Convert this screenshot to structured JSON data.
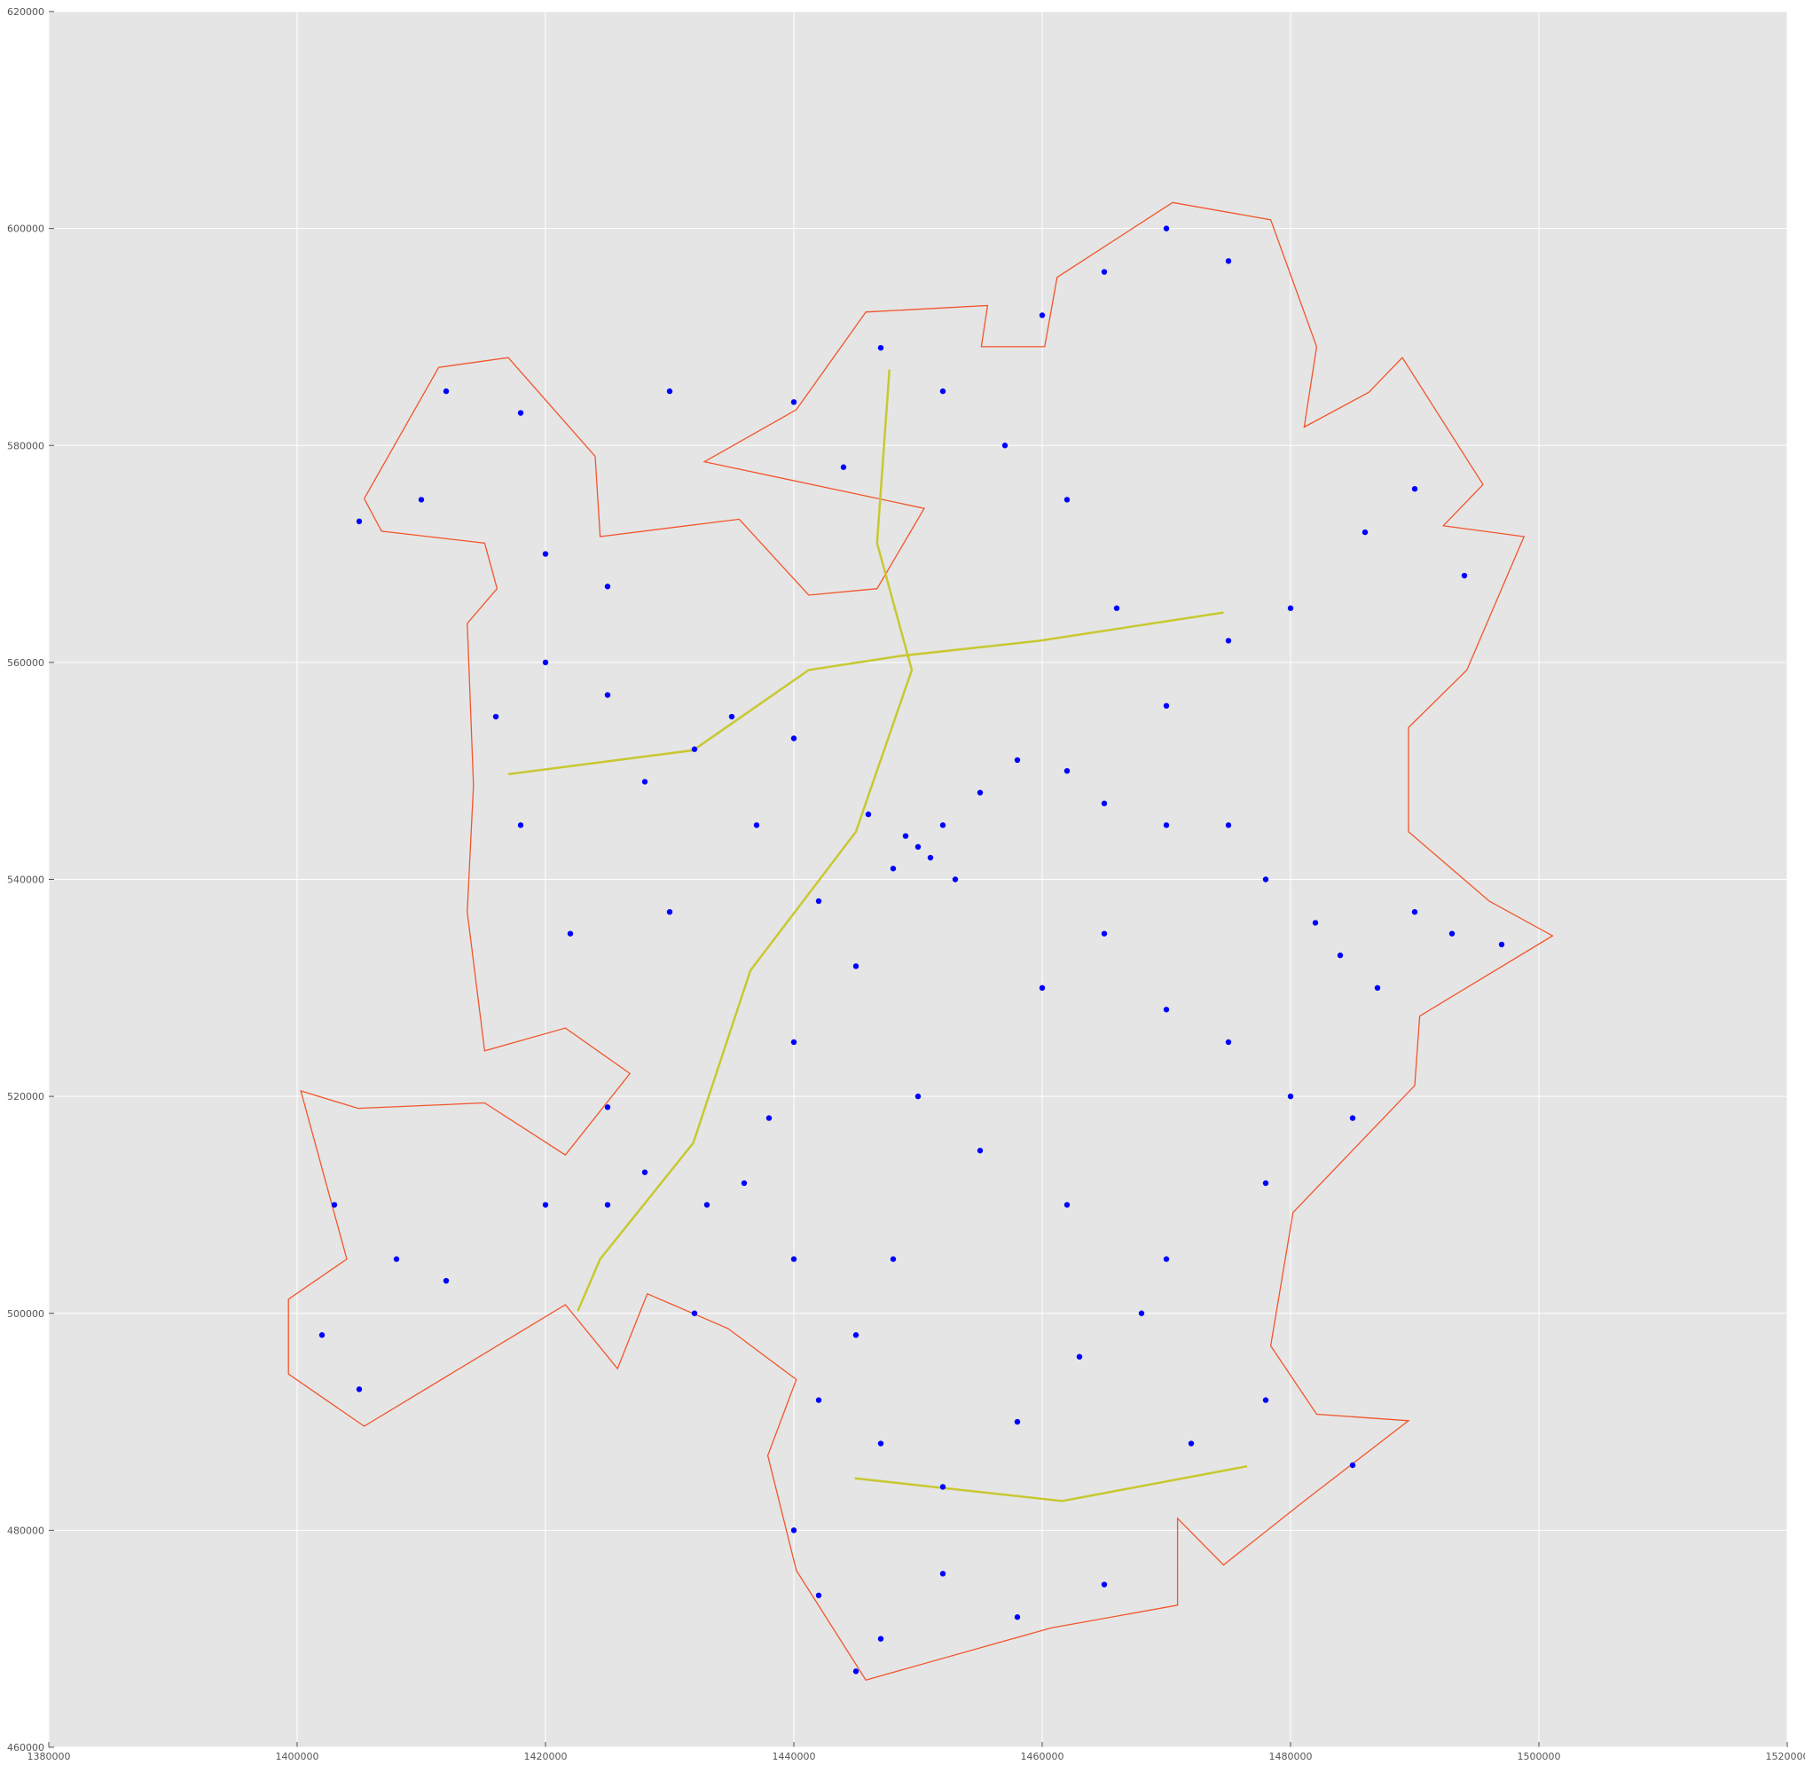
{
  "chart_data": {
    "type": "scatter",
    "xlim": [
      1380000,
      1520000
    ],
    "xticks": [
      1380000,
      1400000,
      1420000,
      1440000,
      1460000,
      1480000,
      1500000,
      1520000
    ],
    "ylim": [
      460000,
      620000
    ],
    "yticks": [
      460000,
      480000,
      500000,
      520000,
      540000,
      560000,
      580000,
      600000,
      620000
    ],
    "grid": true,
    "boundary": {
      "color": "#f2552c",
      "x": [
        1405400,
        1411400,
        1417000,
        1424000,
        1424400,
        1435600,
        1441200,
        1446700,
        1450500,
        1432800,
        1440200,
        1445800,
        1455600,
        1455100,
        1460200,
        1461200,
        1470500,
        1478400,
        1482100,
        1481100,
        1486300,
        1489000,
        1495500,
        1492300,
        1498800,
        1494200,
        1489500,
        1489500,
        1496000,
        1501100,
        1490400,
        1490000,
        1480200,
        1478400,
        1482100,
        1489500,
        1481100,
        1474600,
        1470900,
        1470900,
        1460700,
        1445800,
        1440200,
        1437900,
        1440200,
        1434700,
        1428200,
        1425800,
        1421600,
        1405400,
        1399300,
        1399300,
        1404000,
        1400300,
        1404900,
        1415100,
        1421600,
        1426800,
        1421600,
        1415100,
        1413700,
        1414200,
        1413700,
        1416100,
        1415100,
        1406800,
        1405400
      ],
      "values": [
        575100,
        587200,
        588100,
        579000,
        571600,
        573200,
        566200,
        566800,
        574200,
        578500,
        583300,
        592300,
        592900,
        589100,
        589100,
        595500,
        602400,
        600800,
        589100,
        581700,
        584900,
        588100,
        576400,
        572600,
        571600,
        559300,
        554000,
        544400,
        538000,
        534800,
        527400,
        521000,
        509300,
        497000,
        490700,
        490100,
        482700,
        476800,
        481100,
        473100,
        471000,
        466200,
        476300,
        486900,
        493900,
        498600,
        501800,
        494900,
        500800,
        489600,
        494400,
        501300,
        505000,
        520500,
        518900,
        519400,
        514600,
        522100,
        526300,
        524200,
        537000,
        548700,
        563600,
        566800,
        571000,
        572100,
        575100
      ]
    },
    "roads": [
      {
        "color": "#c8c832",
        "x": [
          1417000,
          1431900,
          1441200,
          1448600,
          1459800,
          1474600
        ],
        "values": [
          549700,
          551900,
          559300,
          560600,
          562000,
          564600
        ]
      },
      {
        "color": "#c8c832",
        "x": [
          1447700,
          1446700,
          1449500,
          1445000,
          1436500,
          1431900,
          1424400,
          1422600
        ],
        "values": [
          587000,
          571000,
          559300,
          544400,
          531600,
          515700,
          505000,
          500200
        ]
      },
      {
        "color": "#c8c832",
        "x": [
          1444900,
          1461600,
          1476500
        ],
        "values": [
          484800,
          482700,
          485900
        ]
      }
    ],
    "series": [
      {
        "color": "#0000ff",
        "x": [
          1450000,
          1451000,
          1449000,
          1452000,
          1448000,
          1453000,
          1446000,
          1455000,
          1458000,
          1462000,
          1465000,
          1470000,
          1475000,
          1478000,
          1482000,
          1484000,
          1487000,
          1490000,
          1493000,
          1497000,
          1440000,
          1435000,
          1432000,
          1428000,
          1425000,
          1420000,
          1416000,
          1418000,
          1422000,
          1430000,
          1437000,
          1442000,
          1445000,
          1440000,
          1438000,
          1436000,
          1440000,
          1433000,
          1428000,
          1425000,
          1460000,
          1465000,
          1470000,
          1475000,
          1480000,
          1485000,
          1478000,
          1470000,
          1462000,
          1455000,
          1450000,
          1448000,
          1445000,
          1442000,
          1447000,
          1452000,
          1458000,
          1463000,
          1468000,
          1472000,
          1478000,
          1485000,
          1440000,
          1442000,
          1447000,
          1452000,
          1458000,
          1465000,
          1445000,
          1470000,
          1475000,
          1480000,
          1486000,
          1490000,
          1494000,
          1466000,
          1462000,
          1457000,
          1452000,
          1444000,
          1440000,
          1447000,
          1460000,
          1465000,
          1470000,
          1475000,
          1430000,
          1425000,
          1420000,
          1410000,
          1405000,
          1412000,
          1418000,
          1403000,
          1408000,
          1402000,
          1405000,
          1412000,
          1420000,
          1425000,
          1432000
        ],
        "values": [
          543000,
          542000,
          544000,
          545000,
          541000,
          540000,
          546000,
          548000,
          551000,
          550000,
          547000,
          545000,
          545000,
          540000,
          536000,
          533000,
          530000,
          537000,
          535000,
          534000,
          553000,
          555000,
          552000,
          549000,
          557000,
          560000,
          555000,
          545000,
          535000,
          537000,
          545000,
          538000,
          532000,
          525000,
          518000,
          512000,
          505000,
          510000,
          513000,
          510000,
          530000,
          535000,
          528000,
          525000,
          520000,
          518000,
          512000,
          505000,
          510000,
          515000,
          520000,
          505000,
          498000,
          492000,
          488000,
          484000,
          490000,
          496000,
          500000,
          488000,
          492000,
          486000,
          480000,
          474000,
          470000,
          476000,
          472000,
          475000,
          467000,
          556000,
          562000,
          565000,
          572000,
          576000,
          568000,
          565000,
          575000,
          580000,
          585000,
          578000,
          584000,
          589000,
          592000,
          596000,
          600000,
          597000,
          585000,
          567000,
          570000,
          575000,
          573000,
          585000,
          583000,
          510000,
          505000,
          498000,
          493000,
          503000,
          510000,
          519000,
          500000
        ]
      }
    ]
  }
}
